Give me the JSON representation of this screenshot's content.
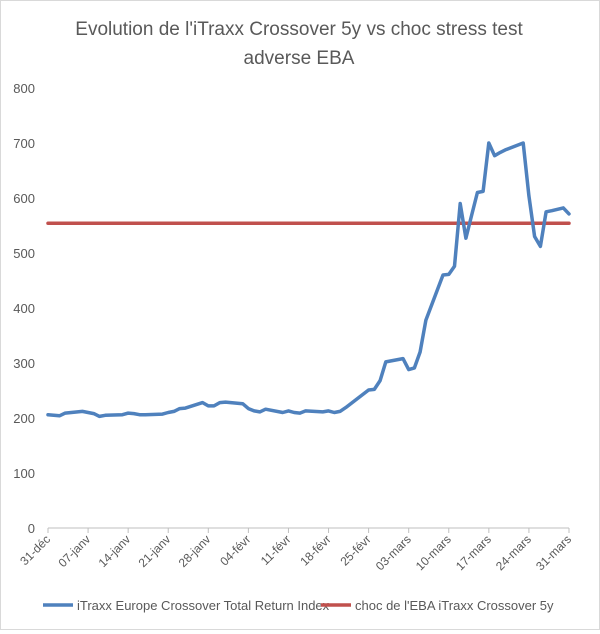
{
  "chart_data": {
    "type": "line",
    "title_lines": [
      "Evolution de l'iTraxx Crossover 5y vs choc stress test",
      "adverse EBA"
    ],
    "xlabel": "",
    "ylabel": "",
    "ylim": [
      0,
      800
    ],
    "yticks": [
      0,
      100,
      200,
      300,
      400,
      500,
      600,
      700,
      800
    ],
    "xlim": [
      0,
      91
    ],
    "x_tick_labels": [
      {
        "label": "31-déc",
        "day": 0
      },
      {
        "label": "07-janv",
        "day": 7
      },
      {
        "label": "14-janv",
        "day": 14
      },
      {
        "label": "21-janv",
        "day": 21
      },
      {
        "label": "28-janv",
        "day": 28
      },
      {
        "label": "04-févr",
        "day": 35
      },
      {
        "label": "11-févr",
        "day": 42
      },
      {
        "label": "18-févr",
        "day": 49
      },
      {
        "label": "25-févr",
        "day": 56
      },
      {
        "label": "03-mars",
        "day": 63
      },
      {
        "label": "10-mars",
        "day": 70
      },
      {
        "label": "17-mars",
        "day": 77
      },
      {
        "label": "24-mars",
        "day": 84
      },
      {
        "label": "31-mars",
        "day": 91
      }
    ],
    "grid": false,
    "legend_position": "bottom",
    "series": [
      {
        "name": "iTraxx Europe Crossover Total Return Index",
        "color": "#4f81bd",
        "x": [
          0,
          2,
          3,
          6,
          7,
          8,
          9,
          10,
          13,
          14,
          15,
          16,
          17,
          20,
          21,
          22,
          23,
          24,
          27,
          28,
          29,
          30,
          31,
          34,
          35,
          36,
          37,
          38,
          41,
          42,
          43,
          44,
          45,
          48,
          49,
          50,
          51,
          52,
          55,
          56,
          57,
          58,
          59,
          62,
          63,
          64,
          65,
          66,
          69,
          70,
          71,
          72,
          73,
          74,
          75,
          76,
          77,
          78,
          79,
          80,
          83,
          84,
          85,
          86,
          87,
          88,
          90,
          91
        ],
        "y": [
          206,
          204,
          209,
          212,
          210,
          208,
          203,
          205,
          206,
          209,
          208,
          206,
          206,
          207,
          210,
          212,
          217,
          218,
          228,
          222,
          222,
          228,
          229,
          226,
          217,
          213,
          211,
          216,
          210,
          213,
          210,
          209,
          213,
          211,
          213,
          210,
          212,
          219,
          243,
          251,
          252,
          268,
          302,
          308,
          288,
          291,
          320,
          378,
          460,
          461,
          476,
          590,
          527,
          569,
          610,
          612,
          700,
          677,
          683,
          688,
          700,
          604,
          530,
          512,
          575,
          577,
          582,
          571
        ]
      },
      {
        "name": "choc de l'EBA iTraxx Crossover 5y",
        "color": "#c0504d",
        "x": [
          0,
          91
        ],
        "y": [
          554,
          554
        ]
      }
    ]
  }
}
